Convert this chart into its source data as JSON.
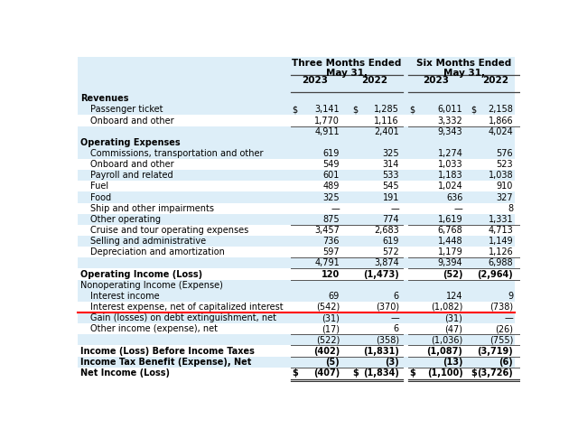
{
  "header_group1": "Three Months Ended\nMay 31,",
  "header_group2": "Six Months Ended\nMay 31,",
  "col_headers": [
    "2023",
    "2022",
    "2023",
    "2022"
  ],
  "rows": [
    {
      "label": "Revenues",
      "vals": [
        "",
        "",
        "",
        ""
      ],
      "style": "section",
      "indent": 0
    },
    {
      "label": "Passenger ticket",
      "vals": [
        "3,141",
        "1,285",
        "6,011",
        "2,158"
      ],
      "style": "normal",
      "indent": 1,
      "dollar": true
    },
    {
      "label": "Onboard and other",
      "vals": [
        "1,770",
        "1,116",
        "3,332",
        "1,866"
      ],
      "style": "normal",
      "indent": 1,
      "dollar": false
    },
    {
      "label": "",
      "vals": [
        "4,911",
        "2,401",
        "9,343",
        "4,024"
      ],
      "style": "subtotal",
      "indent": 0,
      "dollar": false
    },
    {
      "label": "Operating Expenses",
      "vals": [
        "",
        "",
        "",
        ""
      ],
      "style": "section",
      "indent": 0
    },
    {
      "label": "Commissions, transportation and other",
      "vals": [
        "619",
        "325",
        "1,274",
        "576"
      ],
      "style": "normal",
      "indent": 1,
      "dollar": false
    },
    {
      "label": "Onboard and other",
      "vals": [
        "549",
        "314",
        "1,033",
        "523"
      ],
      "style": "normal",
      "indent": 1,
      "dollar": false
    },
    {
      "label": "Payroll and related",
      "vals": [
        "601",
        "533",
        "1,183",
        "1,038"
      ],
      "style": "normal",
      "indent": 1,
      "dollar": false
    },
    {
      "label": "Fuel",
      "vals": [
        "489",
        "545",
        "1,024",
        "910"
      ],
      "style": "normal",
      "indent": 1,
      "dollar": false
    },
    {
      "label": "Food",
      "vals": [
        "325",
        "191",
        "636",
        "327"
      ],
      "style": "normal",
      "indent": 1,
      "dollar": false
    },
    {
      "label": "Ship and other impairments",
      "vals": [
        "—",
        "—",
        "—",
        "8"
      ],
      "style": "normal",
      "indent": 1,
      "dollar": false
    },
    {
      "label": "Other operating",
      "vals": [
        "875",
        "774",
        "1,619",
        "1,331"
      ],
      "style": "normal",
      "indent": 1,
      "dollar": false
    },
    {
      "label": "Cruise and tour operating expenses",
      "vals": [
        "3,457",
        "2,683",
        "6,768",
        "4,713"
      ],
      "style": "subtotal",
      "indent": 1,
      "dollar": false
    },
    {
      "label": "Selling and administrative",
      "vals": [
        "736",
        "619",
        "1,448",
        "1,149"
      ],
      "style": "normal",
      "indent": 1,
      "dollar": false
    },
    {
      "label": "Depreciation and amortization",
      "vals": [
        "597",
        "572",
        "1,179",
        "1,126"
      ],
      "style": "normal",
      "indent": 1,
      "dollar": false
    },
    {
      "label": "",
      "vals": [
        "4,791",
        "3,874",
        "9,394",
        "6,988"
      ],
      "style": "subtotal",
      "indent": 0,
      "dollar": false
    },
    {
      "label": "Operating Income (Loss)",
      "vals": [
        "120",
        "(1,473)",
        "(52)",
        "(2,964)"
      ],
      "style": "bold_line",
      "indent": 0,
      "dollar": false
    },
    {
      "label": "Nonoperating Income (Expense)",
      "vals": [
        "",
        "",
        "",
        ""
      ],
      "style": "section_plain",
      "indent": 0
    },
    {
      "label": "Interest income",
      "vals": [
        "69",
        "6",
        "124",
        "9"
      ],
      "style": "normal",
      "indent": 1,
      "dollar": false
    },
    {
      "label": "Interest expense, net of capitalized interest",
      "vals": [
        "(542)",
        "(370)",
        "(1,082)",
        "(738)"
      ],
      "style": "redline_below",
      "indent": 1,
      "dollar": false
    },
    {
      "label": "Gain (losses) on debt extinguishment, net",
      "vals": [
        "(31)",
        "—",
        "(31)",
        "—"
      ],
      "style": "normal",
      "indent": 1,
      "dollar": false
    },
    {
      "label": "Other income (expense), net",
      "vals": [
        "(17)",
        "6",
        "(47)",
        "(26)"
      ],
      "style": "normal",
      "indent": 1,
      "dollar": false
    },
    {
      "label": "",
      "vals": [
        "(522)",
        "(358)",
        "(1,036)",
        "(755)"
      ],
      "style": "subtotal",
      "indent": 0,
      "dollar": false
    },
    {
      "label": "Income (Loss) Before Income Taxes",
      "vals": [
        "(402)",
        "(1,831)",
        "(1,087)",
        "(3,719)"
      ],
      "style": "bold_line",
      "indent": 0,
      "dollar": false
    },
    {
      "label": "Income Tax Benefit (Expense), Net",
      "vals": [
        "(5)",
        "(3)",
        "(13)",
        "(6)"
      ],
      "style": "bold_noline",
      "indent": 0,
      "dollar": false
    },
    {
      "label": "Net Income (Loss)",
      "vals": [
        "(407)",
        "(1,834)",
        "(1,100)",
        "(3,726)"
      ],
      "style": "bold_double",
      "indent": 0,
      "dollar": true
    }
  ],
  "alt_colors": [
    "#ddeef8",
    "#ffffff"
  ],
  "section_bg": "#ddeef8",
  "header_bg": "#ddeef8",
  "font_size": 7.0,
  "header_font_size": 7.5
}
